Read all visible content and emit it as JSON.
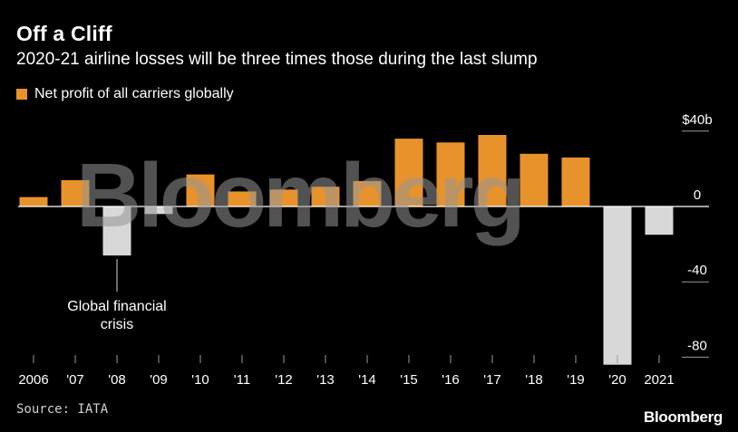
{
  "header": {
    "title": "Off a Cliff",
    "subtitle": "2020-21 airline losses will be three times those during the last slump"
  },
  "legend": {
    "label": "Net profit of all carriers globally"
  },
  "annotation": {
    "line1": "Global financial",
    "line2": "crisis"
  },
  "footer": {
    "source": "Source: IATA",
    "brand": "Bloomberg"
  },
  "watermark": "Bloomberg",
  "colors": {
    "background": "#000000",
    "positive": "#e8922c",
    "negative": "#d8d8d8",
    "zero_line": "#ffffff",
    "text": "#ffffff"
  },
  "chart_data": {
    "type": "bar",
    "categories": [
      "2006",
      "'07",
      "'08",
      "'09",
      "'10",
      "'11",
      "'12",
      "'13",
      "'14",
      "'15",
      "'16",
      "'17",
      "'18",
      "'19",
      "'20",
      "2021"
    ],
    "values": [
      5,
      14,
      -26,
      -4,
      17,
      8,
      9,
      10.5,
      13.5,
      36,
      34,
      38,
      28,
      26,
      -84,
      -15
    ],
    "ylim": [
      -84,
      40
    ],
    "yticks": [
      40,
      0,
      -40,
      -80
    ],
    "ytick_labels": [
      "$40b",
      "0",
      "-40",
      "-80"
    ],
    "legend_position": "top-left",
    "grid": false
  }
}
